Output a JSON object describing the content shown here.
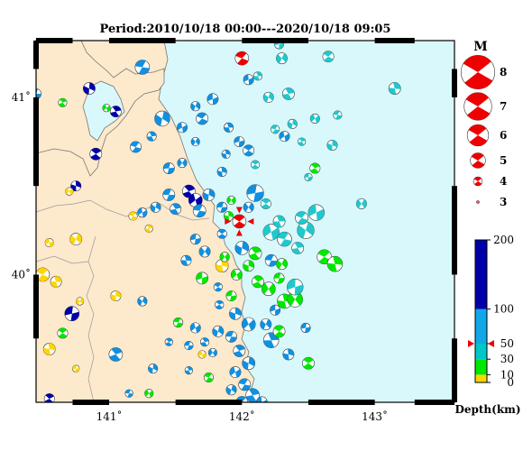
{
  "title": "Period:2010/10/18 00:00---2020/10/18 09:05",
  "axes": {
    "lon_ticks": [
      {
        "label": "141˚",
        "value": 141
      },
      {
        "label": "142˚",
        "value": 142
      },
      {
        "label": "143˚",
        "value": 143
      }
    ],
    "lat_ticks": [
      {
        "label": "41˚",
        "value": 41
      },
      {
        "label": "40˚",
        "value": 40
      }
    ]
  },
  "magnitude_legend": {
    "title": "M",
    "items": [
      {
        "label": "8",
        "value": 8
      },
      {
        "label": "7",
        "value": 7
      },
      {
        "label": "6",
        "value": 6
      },
      {
        "label": "5",
        "value": 5
      },
      {
        "label": "4",
        "value": 4
      },
      {
        "label": "3",
        "value": 3
      }
    ]
  },
  "depth_scale": {
    "title": "Depth(km)",
    "labels": [
      "200",
      "100",
      "50",
      "30",
      "10",
      "0"
    ],
    "values": [
      200,
      100,
      50,
      30,
      10,
      0
    ],
    "colors": {
      "0-10": "#ffd600",
      "10-30": "#00e800",
      "30-50": "#00c8c8",
      "50-100": "#10a8e8",
      "100-200": "#0000aa"
    },
    "marker_depth": 50
  },
  "colors": {
    "land": "#fde9cc",
    "sea": "#d8f8fc",
    "shallow": "#ffd600",
    "mid": "#00e800",
    "cyan": "#20c8cc",
    "blue": "#1090e0",
    "deep": "#0000aa",
    "highlight": "#ee0000"
  },
  "highlight_event": {
    "lon": 141.98,
    "lat": 40.3,
    "m": 4.2,
    "color": "red"
  },
  "events": [
    {
      "lon": 140.45,
      "lat": 41.02,
      "m": 3.8,
      "c": "blue"
    },
    {
      "lon": 140.65,
      "lat": 40.97,
      "m": 3.6,
      "c": "mid"
    },
    {
      "lon": 140.85,
      "lat": 41.05,
      "m": 4.0,
      "c": "deep"
    },
    {
      "lon": 140.98,
      "lat": 40.94,
      "m": 3.5,
      "c": "mid"
    },
    {
      "lon": 141.25,
      "lat": 41.17,
      "m": 4.3,
      "c": "blue"
    },
    {
      "lon": 141.05,
      "lat": 40.92,
      "m": 3.9,
      "c": "deep"
    },
    {
      "lon": 141.4,
      "lat": 40.88,
      "m": 4.4,
      "c": "blue"
    },
    {
      "lon": 141.55,
      "lat": 40.83,
      "m": 3.8,
      "c": "blue"
    },
    {
      "lon": 141.2,
      "lat": 40.72,
      "m": 3.9,
      "c": "blue"
    },
    {
      "lon": 141.32,
      "lat": 40.78,
      "m": 3.7,
      "c": "blue"
    },
    {
      "lon": 141.65,
      "lat": 40.95,
      "m": 3.7,
      "c": "blue"
    },
    {
      "lon": 141.78,
      "lat": 40.99,
      "m": 3.9,
      "c": "blue"
    },
    {
      "lon": 141.7,
      "lat": 40.88,
      "m": 4.0,
      "c": "blue"
    },
    {
      "lon": 141.9,
      "lat": 40.83,
      "m": 3.7,
      "c": "blue"
    },
    {
      "lon": 141.65,
      "lat": 40.75,
      "m": 3.6,
      "c": "blue"
    },
    {
      "lon": 141.98,
      "lat": 40.75,
      "m": 3.8,
      "c": "blue"
    },
    {
      "lon": 142.05,
      "lat": 40.7,
      "m": 3.9,
      "c": "blue"
    },
    {
      "lon": 141.88,
      "lat": 40.68,
      "m": 3.6,
      "c": "blue"
    },
    {
      "lon": 141.55,
      "lat": 40.63,
      "m": 3.7,
      "c": "blue"
    },
    {
      "lon": 141.45,
      "lat": 40.6,
      "m": 3.9,
      "c": "blue"
    },
    {
      "lon": 140.9,
      "lat": 40.68,
      "m": 4.0,
      "c": "deep"
    },
    {
      "lon": 140.75,
      "lat": 40.5,
      "m": 3.8,
      "c": "deep"
    },
    {
      "lon": 140.7,
      "lat": 40.47,
      "m": 3.5,
      "c": "yellow"
    },
    {
      "lon": 141.45,
      "lat": 40.45,
      "m": 4.0,
      "c": "blue"
    },
    {
      "lon": 141.6,
      "lat": 40.47,
      "m": 4.1,
      "c": "deep"
    },
    {
      "lon": 141.75,
      "lat": 40.45,
      "m": 4.0,
      "c": "blue"
    },
    {
      "lon": 141.65,
      "lat": 40.42,
      "m": 4.2,
      "c": "deep"
    },
    {
      "lon": 141.68,
      "lat": 40.36,
      "m": 4.1,
      "c": "blue"
    },
    {
      "lon": 141.5,
      "lat": 40.37,
      "m": 3.9,
      "c": "blue"
    },
    {
      "lon": 141.35,
      "lat": 40.38,
      "m": 3.8,
      "c": "blue"
    },
    {
      "lon": 141.25,
      "lat": 40.35,
      "m": 3.7,
      "c": "blue"
    },
    {
      "lon": 141.18,
      "lat": 40.33,
      "m": 3.6,
      "c": "yellow"
    },
    {
      "lon": 141.3,
      "lat": 40.26,
      "m": 3.5,
      "c": "yellow"
    },
    {
      "lon": 140.75,
      "lat": 40.2,
      "m": 4.0,
      "c": "yellow"
    },
    {
      "lon": 140.55,
      "lat": 40.18,
      "m": 3.6,
      "c": "yellow"
    },
    {
      "lon": 140.5,
      "lat": 40.0,
      "m": 4.2,
      "c": "yellow"
    },
    {
      "lon": 140.6,
      "lat": 39.96,
      "m": 3.9,
      "c": "yellow"
    },
    {
      "lon": 140.78,
      "lat": 39.85,
      "m": 3.5,
      "c": "yellow"
    },
    {
      "lon": 140.72,
      "lat": 39.78,
      "m": 4.3,
      "c": "deep"
    },
    {
      "lon": 140.65,
      "lat": 39.67,
      "m": 3.8,
      "c": "mid"
    },
    {
      "lon": 140.55,
      "lat": 39.58,
      "m": 4.0,
      "c": "yellow"
    },
    {
      "lon": 140.4,
      "lat": 39.55,
      "m": 3.6,
      "c": "yellow"
    },
    {
      "lon": 140.75,
      "lat": 39.47,
      "m": 3.4,
      "c": "yellow"
    },
    {
      "lon": 140.55,
      "lat": 39.3,
      "m": 3.8,
      "c": "deep"
    },
    {
      "lon": 141.05,
      "lat": 39.88,
      "m": 3.8,
      "c": "yellow"
    },
    {
      "lon": 141.3,
      "lat": 39.33,
      "m": 3.6,
      "c": "mid"
    },
    {
      "lon": 141.15,
      "lat": 39.33,
      "m": 3.5,
      "c": "blue"
    },
    {
      "lon": 141.05,
      "lat": 39.55,
      "m": 4.2,
      "c": "blue"
    },
    {
      "lon": 141.33,
      "lat": 39.47,
      "m": 3.7,
      "c": "blue"
    },
    {
      "lon": 141.65,
      "lat": 39.7,
      "m": 3.8,
      "c": "blue"
    },
    {
      "lon": 141.52,
      "lat": 39.73,
      "m": 3.7,
      "c": "mid"
    },
    {
      "lon": 141.72,
      "lat": 39.62,
      "m": 3.6,
      "c": "blue"
    },
    {
      "lon": 141.82,
      "lat": 39.68,
      "m": 3.9,
      "c": "blue"
    },
    {
      "lon": 141.7,
      "lat": 39.55,
      "m": 3.5,
      "c": "yellow"
    },
    {
      "lon": 141.75,
      "lat": 39.42,
      "m": 3.7,
      "c": "mid"
    },
    {
      "lon": 141.6,
      "lat": 39.46,
      "m": 3.5,
      "c": "blue"
    },
    {
      "lon": 141.25,
      "lat": 39.85,
      "m": 3.7,
      "c": "blue"
    },
    {
      "lon": 141.7,
      "lat": 39.98,
      "m": 4.0,
      "c": "mid"
    },
    {
      "lon": 141.82,
      "lat": 39.93,
      "m": 3.6,
      "c": "blue"
    },
    {
      "lon": 141.58,
      "lat": 40.08,
      "m": 3.8,
      "c": "blue"
    },
    {
      "lon": 141.72,
      "lat": 40.13,
      "m": 3.9,
      "c": "blue"
    },
    {
      "lon": 141.65,
      "lat": 40.2,
      "m": 3.8,
      "c": "blue"
    },
    {
      "lon": 141.85,
      "lat": 40.23,
      "m": 3.7,
      "c": "blue"
    },
    {
      "lon": 141.85,
      "lat": 40.05,
      "m": 4.1,
      "c": "yellow"
    },
    {
      "lon": 141.87,
      "lat": 40.1,
      "m": 3.7,
      "c": "mid"
    },
    {
      "lon": 141.92,
      "lat": 39.88,
      "m": 3.8,
      "c": "mid"
    },
    {
      "lon": 141.83,
      "lat": 39.83,
      "m": 3.6,
      "c": "blue"
    },
    {
      "lon": 141.95,
      "lat": 39.78,
      "m": 4.0,
      "c": "blue"
    },
    {
      "lon": 142.05,
      "lat": 39.72,
      "m": 4.2,
      "c": "blue"
    },
    {
      "lon": 141.92,
      "lat": 39.65,
      "m": 3.9,
      "c": "blue"
    },
    {
      "lon": 141.98,
      "lat": 39.57,
      "m": 4.0,
      "c": "blue"
    },
    {
      "lon": 142.05,
      "lat": 39.5,
      "m": 4.1,
      "c": "blue"
    },
    {
      "lon": 141.95,
      "lat": 39.45,
      "m": 3.9,
      "c": "blue"
    },
    {
      "lon": 142.02,
      "lat": 39.38,
      "m": 4.0,
      "c": "blue"
    },
    {
      "lon": 142.08,
      "lat": 39.32,
      "m": 4.2,
      "c": "blue"
    },
    {
      "lon": 141.92,
      "lat": 39.35,
      "m": 3.8,
      "c": "blue"
    },
    {
      "lon": 142.15,
      "lat": 39.28,
      "m": 3.9,
      "c": "blue"
    },
    {
      "lon": 142.0,
      "lat": 39.28,
      "m": 4.0,
      "c": "blue"
    },
    {
      "lon": 142.22,
      "lat": 39.63,
      "m": 4.4,
      "c": "blue"
    },
    {
      "lon": 142.18,
      "lat": 39.72,
      "m": 3.9,
      "c": "blue"
    },
    {
      "lon": 142.25,
      "lat": 39.8,
      "m": 3.8,
      "c": "blue"
    },
    {
      "lon": 142.28,
      "lat": 39.68,
      "m": 4.0,
      "c": "mid"
    },
    {
      "lon": 142.32,
      "lat": 39.85,
      "m": 4.3,
      "c": "mid"
    },
    {
      "lon": 142.4,
      "lat": 39.86,
      "m": 4.4,
      "c": "mid"
    },
    {
      "lon": 142.48,
      "lat": 39.7,
      "m": 3.7,
      "c": "blue"
    },
    {
      "lon": 142.5,
      "lat": 39.5,
      "m": 4.0,
      "c": "mid"
    },
    {
      "lon": 142.35,
      "lat": 39.55,
      "m": 3.9,
      "c": "blue"
    },
    {
      "lon": 142.2,
      "lat": 39.92,
      "m": 4.2,
      "c": "mid"
    },
    {
      "lon": 142.28,
      "lat": 39.98,
      "m": 3.8,
      "c": "mid"
    },
    {
      "lon": 142.12,
      "lat": 39.96,
      "m": 4.0,
      "c": "mid"
    },
    {
      "lon": 142.05,
      "lat": 40.05,
      "m": 3.9,
      "c": "mid"
    },
    {
      "lon": 141.96,
      "lat": 40.0,
      "m": 3.9,
      "c": "mid"
    },
    {
      "lon": 142.22,
      "lat": 40.08,
      "m": 4.0,
      "c": "blue"
    },
    {
      "lon": 142.1,
      "lat": 40.12,
      "m": 4.1,
      "c": "mid"
    },
    {
      "lon": 142.0,
      "lat": 40.15,
      "m": 4.2,
      "c": "blue"
    },
    {
      "lon": 142.22,
      "lat": 40.24,
      "m": 4.5,
      "c": "cyan"
    },
    {
      "lon": 142.32,
      "lat": 40.2,
      "m": 4.3,
      "c": "cyan"
    },
    {
      "lon": 142.42,
      "lat": 40.15,
      "m": 4.0,
      "c": "cyan"
    },
    {
      "lon": 142.48,
      "lat": 40.25,
      "m": 4.6,
      "c": "cyan"
    },
    {
      "lon": 142.56,
      "lat": 40.35,
      "m": 4.5,
      "c": "cyan"
    },
    {
      "lon": 142.45,
      "lat": 40.32,
      "m": 4.1,
      "c": "cyan"
    },
    {
      "lon": 142.28,
      "lat": 40.3,
      "m": 4.0,
      "c": "cyan"
    },
    {
      "lon": 142.3,
      "lat": 40.06,
      "m": 3.9,
      "c": "mid"
    },
    {
      "lon": 142.4,
      "lat": 39.93,
      "m": 4.5,
      "c": "cyan"
    },
    {
      "lon": 142.62,
      "lat": 40.1,
      "m": 4.3,
      "c": "mid"
    },
    {
      "lon": 142.7,
      "lat": 40.06,
      "m": 4.4,
      "c": "mid"
    },
    {
      "lon": 142.05,
      "lat": 40.38,
      "m": 3.8,
      "c": "blue"
    },
    {
      "lon": 142.1,
      "lat": 40.46,
      "m": 4.6,
      "c": "blue"
    },
    {
      "lon": 142.18,
      "lat": 40.4,
      "m": 3.8,
      "c": "cyan"
    },
    {
      "lon": 141.9,
      "lat": 40.33,
      "m": 3.7,
      "c": "mid"
    },
    {
      "lon": 141.92,
      "lat": 40.42,
      "m": 3.6,
      "c": "mid"
    },
    {
      "lon": 141.85,
      "lat": 40.38,
      "m": 3.8,
      "c": "blue"
    },
    {
      "lon": 142.55,
      "lat": 40.6,
      "m": 3.8,
      "c": "mid"
    },
    {
      "lon": 142.68,
      "lat": 40.73,
      "m": 3.8,
      "c": "cyan"
    },
    {
      "lon": 142.55,
      "lat": 40.88,
      "m": 3.7,
      "c": "cyan"
    },
    {
      "lon": 142.72,
      "lat": 40.9,
      "m": 3.6,
      "c": "cyan"
    },
    {
      "lon": 142.45,
      "lat": 40.75,
      "m": 3.5,
      "c": "cyan"
    },
    {
      "lon": 142.38,
      "lat": 40.85,
      "m": 3.7,
      "c": "cyan"
    },
    {
      "lon": 142.32,
      "lat": 40.78,
      "m": 3.8,
      "c": "blue"
    },
    {
      "lon": 142.25,
      "lat": 40.82,
      "m": 3.6,
      "c": "cyan"
    },
    {
      "lon": 142.35,
      "lat": 41.02,
      "m": 4.0,
      "c": "cyan"
    },
    {
      "lon": 142.2,
      "lat": 41.0,
      "m": 3.8,
      "c": "cyan"
    },
    {
      "lon": 142.05,
      "lat": 41.1,
      "m": 3.8,
      "c": "blue"
    },
    {
      "lon": 142.0,
      "lat": 41.22,
      "m": 4.2,
      "c": "red"
    },
    {
      "lon": 142.12,
      "lat": 41.12,
      "m": 3.6,
      "c": "cyan"
    },
    {
      "lon": 142.3,
      "lat": 41.22,
      "m": 3.9,
      "c": "cyan"
    },
    {
      "lon": 142.28,
      "lat": 41.3,
      "m": 3.7,
      "c": "cyan"
    },
    {
      "lon": 142.65,
      "lat": 41.23,
      "m": 3.9,
      "c": "cyan"
    },
    {
      "lon": 143.15,
      "lat": 41.05,
      "m": 4.0,
      "c": "cyan"
    },
    {
      "lon": 142.9,
      "lat": 40.4,
      "m": 3.8,
      "c": "cyan"
    },
    {
      "lon": 142.5,
      "lat": 40.55,
      "m": 3.5,
      "c": "cyan"
    },
    {
      "lon": 142.1,
      "lat": 40.62,
      "m": 3.6,
      "c": "cyan"
    },
    {
      "lon": 141.85,
      "lat": 40.58,
      "m": 3.7,
      "c": "blue"
    },
    {
      "lon": 141.78,
      "lat": 39.56,
      "m": 3.6,
      "c": "blue"
    },
    {
      "lon": 141.6,
      "lat": 39.6,
      "m": 3.6,
      "c": "blue"
    },
    {
      "lon": 141.45,
      "lat": 39.62,
      "m": 3.5,
      "c": "blue"
    }
  ]
}
